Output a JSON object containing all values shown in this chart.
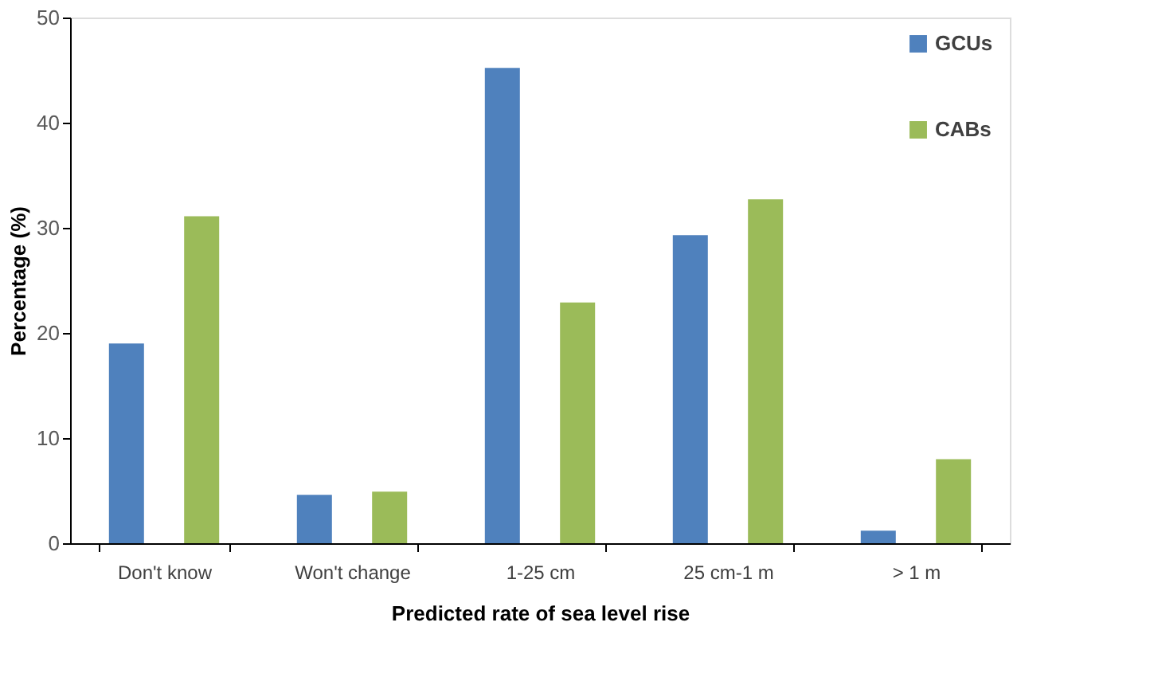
{
  "chart_data": {
    "type": "bar",
    "xlabel": "Predicted rate of sea level rise",
    "ylabel": "Percentage (%)",
    "categories": [
      "Don't know",
      "Won't change",
      "1-25 cm",
      "25 cm-1 m",
      "> 1 m"
    ],
    "series": [
      {
        "name": "GCUs",
        "color": "#4f81bd",
        "values": [
          19.0,
          4.6,
          45.2,
          29.3,
          1.2
        ]
      },
      {
        "name": "CABs",
        "color": "#9bbb59",
        "values": [
          31.1,
          4.9,
          22.9,
          32.7,
          8.0
        ]
      }
    ],
    "ylim": [
      0,
      50
    ],
    "yticks": [
      0,
      10,
      20,
      30,
      40,
      50
    ],
    "grid": false,
    "legend": "top right"
  }
}
